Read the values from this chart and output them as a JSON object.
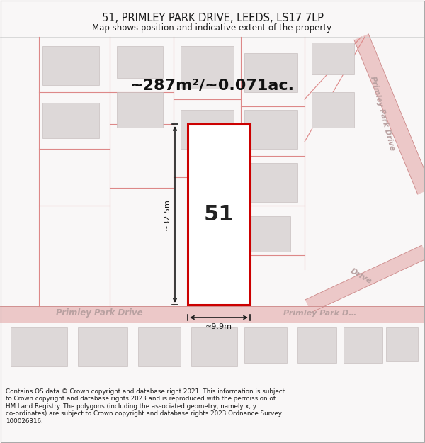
{
  "title": "51, PRIMLEY PARK DRIVE, LEEDS, LS17 7LP",
  "subtitle": "Map shows position and indicative extent of the property.",
  "area_text": "~287m²/~0.071ac.",
  "number_label": "51",
  "dim_width": "~9.9m",
  "dim_height": "~32.5m",
  "footer": "Contains OS data © Crown copyright and database right 2021. This information is subject\nto Crown copyright and database rights 2023 and is reproduced with the permission of\nHM Land Registry. The polygons (including the associated geometry, namely x, y\nco-ordinates) are subject to Crown copyright and database rights 2023 Ordnance Survey\n100026316.",
  "bg_color": "#f9f7f7",
  "map_bg": "#f9f7f7",
  "road_color": "#ecc8c8",
  "road_label_color": "#b8a0a0",
  "building_fill": "#ddd8d8",
  "building_edge": "#c8c0c0",
  "plot_edge_color": "#cc0000",
  "plot_fill": "#ffffff",
  "dim_color": "#1a1a1a",
  "title_color": "#1a1a1a",
  "footer_color": "#1a1a1a",
  "boundary_color": "#dd8888"
}
